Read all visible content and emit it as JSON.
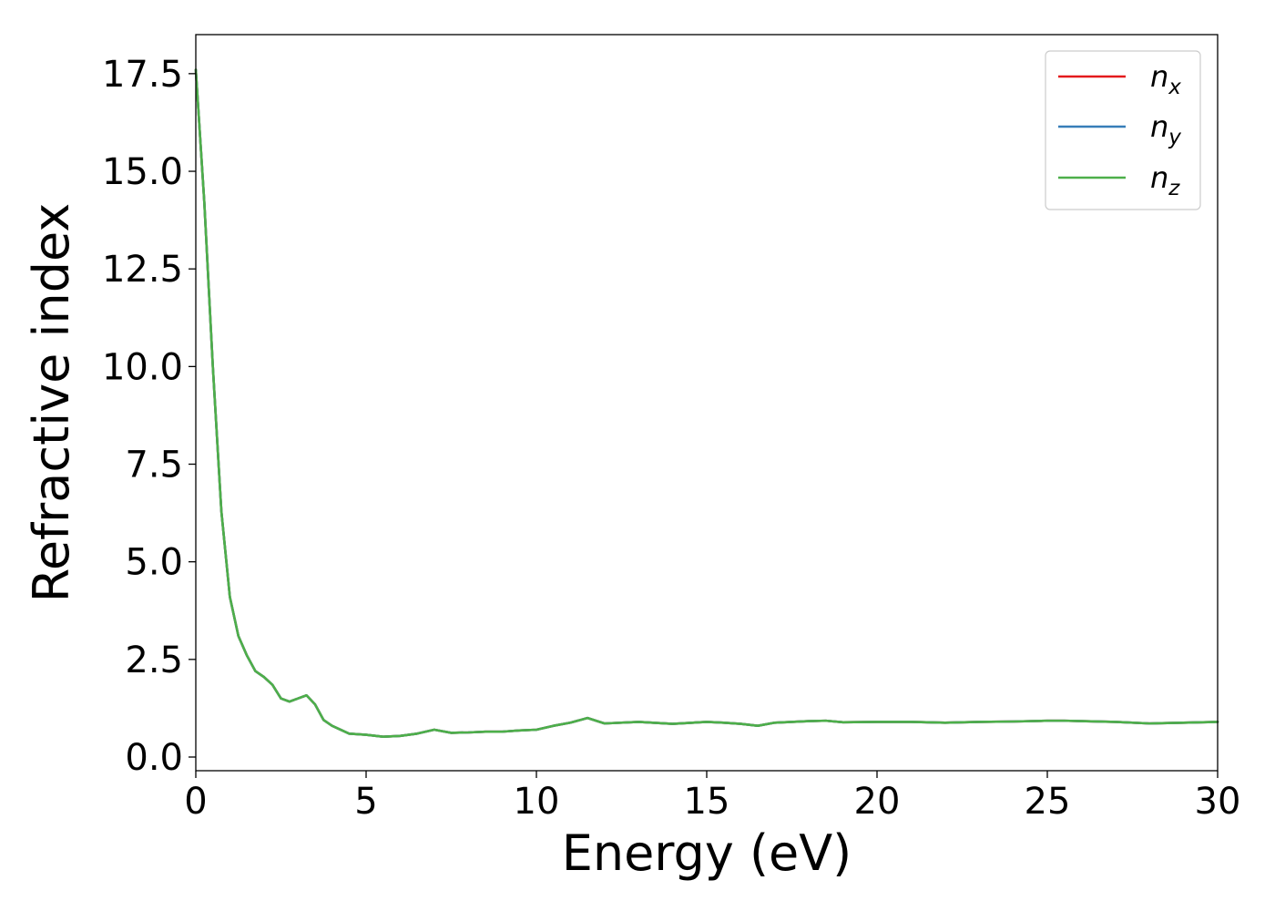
{
  "chart_data": {
    "type": "line",
    "title": "",
    "xlabel": "Energy (eV)",
    "ylabel": "Refractive index",
    "xlim": [
      0,
      30
    ],
    "ylim": [
      -0.35,
      18.5
    ],
    "xticks": [
      0,
      5,
      10,
      15,
      20,
      25,
      30
    ],
    "xtick_labels": [
      "0",
      "5",
      "10",
      "15",
      "20",
      "25",
      "30"
    ],
    "yticks": [
      0,
      2.5,
      5,
      7.5,
      10,
      12.5,
      15,
      17.5
    ],
    "ytick_labels": [
      "0.0",
      "2.5",
      "5.0",
      "7.5",
      "10.0",
      "12.5",
      "15.0",
      "17.5"
    ],
    "grid": false,
    "legend_position": "top-right",
    "x": [
      0,
      0.25,
      0.5,
      0.75,
      1.0,
      1.25,
      1.5,
      1.75,
      2.0,
      2.25,
      2.5,
      2.75,
      3.0,
      3.25,
      3.5,
      3.75,
      4.0,
      4.5,
      5.0,
      5.5,
      6.0,
      6.5,
      7.0,
      7.5,
      8.0,
      8.5,
      9.0,
      9.5,
      10.0,
      10.5,
      11.0,
      11.5,
      12.0,
      13.0,
      14.0,
      15.0,
      15.5,
      16.0,
      16.5,
      17.0,
      18.0,
      18.5,
      19.0,
      20.0,
      21.0,
      22.0,
      23.0,
      24.0,
      25.0,
      25.5,
      26.0,
      27.0,
      28.0,
      29.0,
      30.0
    ],
    "series": [
      {
        "name": "n",
        "sub": "x",
        "color": "#e41a1c",
        "values": [
          17.6,
          14.2,
          10.0,
          6.3,
          4.1,
          3.1,
          2.6,
          2.2,
          2.05,
          1.85,
          1.5,
          1.42,
          1.5,
          1.58,
          1.35,
          0.95,
          0.8,
          0.6,
          0.57,
          0.52,
          0.54,
          0.6,
          0.7,
          0.62,
          0.63,
          0.65,
          0.65,
          0.68,
          0.7,
          0.8,
          0.88,
          1.0,
          0.86,
          0.9,
          0.85,
          0.9,
          0.88,
          0.85,
          0.8,
          0.88,
          0.92,
          0.93,
          0.89,
          0.9,
          0.9,
          0.88,
          0.9,
          0.91,
          0.93,
          0.93,
          0.92,
          0.9,
          0.86,
          0.88,
          0.9
        ]
      },
      {
        "name": "n",
        "sub": "y",
        "color": "#377eb8",
        "values": [
          17.6,
          14.2,
          10.0,
          6.3,
          4.1,
          3.1,
          2.6,
          2.2,
          2.05,
          1.85,
          1.5,
          1.42,
          1.5,
          1.58,
          1.35,
          0.95,
          0.8,
          0.6,
          0.57,
          0.52,
          0.54,
          0.6,
          0.7,
          0.62,
          0.63,
          0.65,
          0.65,
          0.68,
          0.7,
          0.8,
          0.88,
          1.0,
          0.86,
          0.9,
          0.85,
          0.9,
          0.88,
          0.85,
          0.8,
          0.88,
          0.92,
          0.93,
          0.89,
          0.9,
          0.9,
          0.88,
          0.9,
          0.91,
          0.93,
          0.93,
          0.92,
          0.9,
          0.86,
          0.88,
          0.9
        ]
      },
      {
        "name": "n",
        "sub": "z",
        "color": "#4daf4a",
        "values": [
          17.6,
          14.2,
          10.0,
          6.3,
          4.1,
          3.1,
          2.6,
          2.2,
          2.05,
          1.85,
          1.5,
          1.42,
          1.5,
          1.58,
          1.35,
          0.95,
          0.8,
          0.6,
          0.57,
          0.52,
          0.54,
          0.6,
          0.7,
          0.62,
          0.63,
          0.65,
          0.65,
          0.68,
          0.7,
          0.8,
          0.88,
          1.0,
          0.86,
          0.9,
          0.85,
          0.9,
          0.88,
          0.85,
          0.8,
          0.88,
          0.92,
          0.93,
          0.89,
          0.9,
          0.9,
          0.88,
          0.9,
          0.91,
          0.93,
          0.93,
          0.92,
          0.9,
          0.86,
          0.88,
          0.9
        ]
      }
    ]
  }
}
